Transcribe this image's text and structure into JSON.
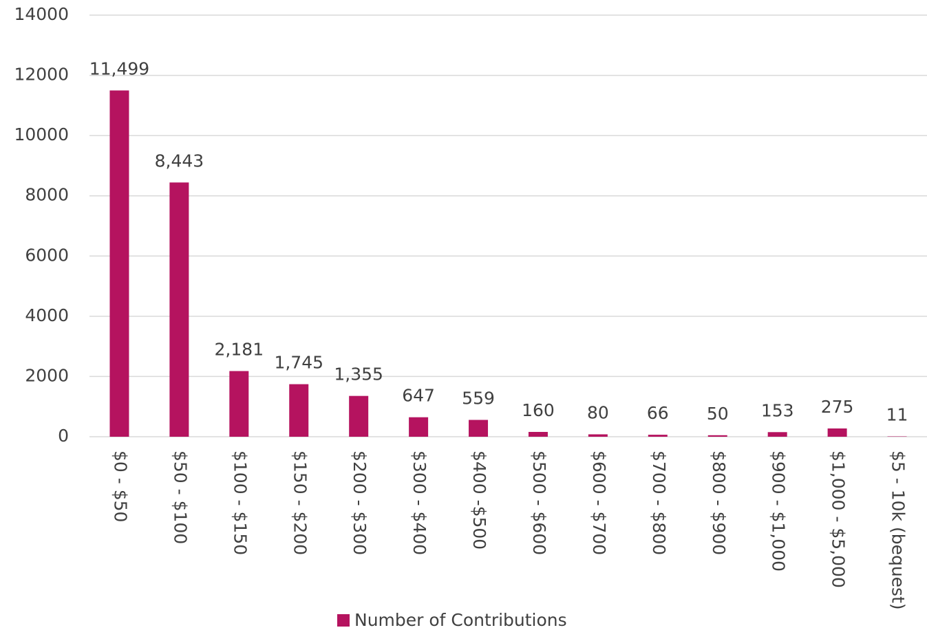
{
  "chart_data": {
    "type": "bar",
    "categories": [
      "$0 - $50",
      "$50 - $100",
      "$100 - $150",
      "$150 - $200",
      "$200 - $300",
      "$300 - $400",
      "$400 -$500",
      "$500 - $600",
      "$600 - $700",
      "$700 - $800",
      "$800 - $900",
      "$900 - $1,000",
      "$1,000 - $5,000",
      "$5 - 10k (bequest)"
    ],
    "series": [
      {
        "name": "Number of Contributions",
        "color": "#b5135f",
        "values": [
          11499,
          8443,
          2181,
          1745,
          1355,
          647,
          559,
          160,
          80,
          66,
          50,
          153,
          275,
          11
        ],
        "value_labels": [
          "11,499",
          "8,443",
          "2,181",
          "1,745",
          "1,355",
          "647",
          "559",
          "160",
          "80",
          "66",
          "50",
          "153",
          "275",
          "11"
        ]
      }
    ],
    "ylim": [
      0,
      14000
    ],
    "yticks": [
      0,
      2000,
      4000,
      6000,
      8000,
      10000,
      12000,
      14000
    ],
    "grid": true,
    "legend": "bottom"
  }
}
